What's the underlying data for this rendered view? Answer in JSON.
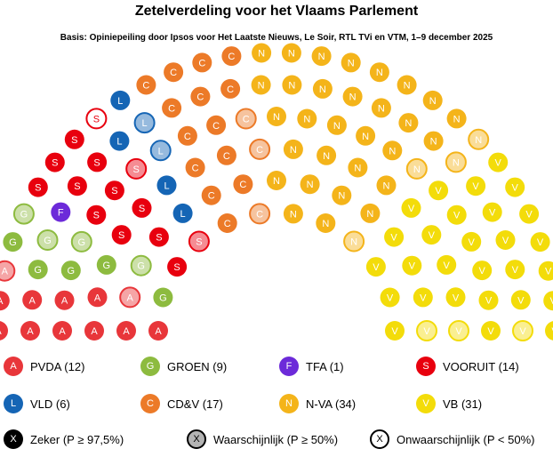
{
  "title": "Zetelverdeling voor het Vlaams Parlement",
  "subtitle": "Basis: Opiniepeiling door Ipsos voor Het Laatste Nieuws, Le Soir, RTL TVi en VTM, 1–9 december 2025",
  "chart_data": {
    "type": "parliament",
    "total_seats": 124,
    "parties": [
      {
        "name": "PVDA",
        "letter": "A",
        "seats": 12,
        "label": "PVDA (12)",
        "color": "#e8363a",
        "text_color": "#ffffff",
        "likely": 2,
        "unlikely": 0
      },
      {
        "name": "GROEN",
        "letter": "G",
        "seats": 9,
        "label": "GROEN (9)",
        "color": "#8dbb3f",
        "text_color": "#ffffff",
        "likely": 4,
        "unlikely": 0
      },
      {
        "name": "TFA",
        "letter": "F",
        "seats": 1,
        "label": "TFA (1)",
        "color": "#6c2ad9",
        "text_color": "#ffffff",
        "likely": 0,
        "unlikely": 0
      },
      {
        "name": "VOORUIT",
        "letter": "S",
        "seats": 14,
        "label": "VOORUIT (14)",
        "color": "#e8000e",
        "text_color": "#ffffff",
        "likely": 2,
        "unlikely": 1
      },
      {
        "name": "VLD",
        "letter": "L",
        "seats": 6,
        "label": "VLD (6)",
        "color": "#1565b5",
        "text_color": "#ffffff",
        "likely": 2,
        "unlikely": 0
      },
      {
        "name": "CD&V",
        "letter": "C",
        "seats": 17,
        "label": "CD&V (17)",
        "color": "#ec7a28",
        "text_color": "#ffffff",
        "likely": 3,
        "unlikely": 0
      },
      {
        "name": "N-VA",
        "letter": "N",
        "seats": 34,
        "label": "N-VA (34)",
        "color": "#f4b41a",
        "text_color": "#ffffff",
        "likely": 4,
        "unlikely": 0
      },
      {
        "name": "VB",
        "letter": "V",
        "seats": 31,
        "label": "VB (31)",
        "color": "#f3dc0a",
        "text_color": "#ffffff",
        "likely": 3,
        "unlikely": 0
      }
    ],
    "certainty_legend": [
      {
        "letter": "X",
        "label": "Zeker (P ≥ 97,5%)",
        "style": "sure"
      },
      {
        "letter": "X",
        "label": "Waarschijnlijk (P ≥ 50%)",
        "style": "likely"
      },
      {
        "letter": "X",
        "label": "Onwaarschijnlijk (P < 50%)",
        "style": "unlikely"
      }
    ]
  }
}
